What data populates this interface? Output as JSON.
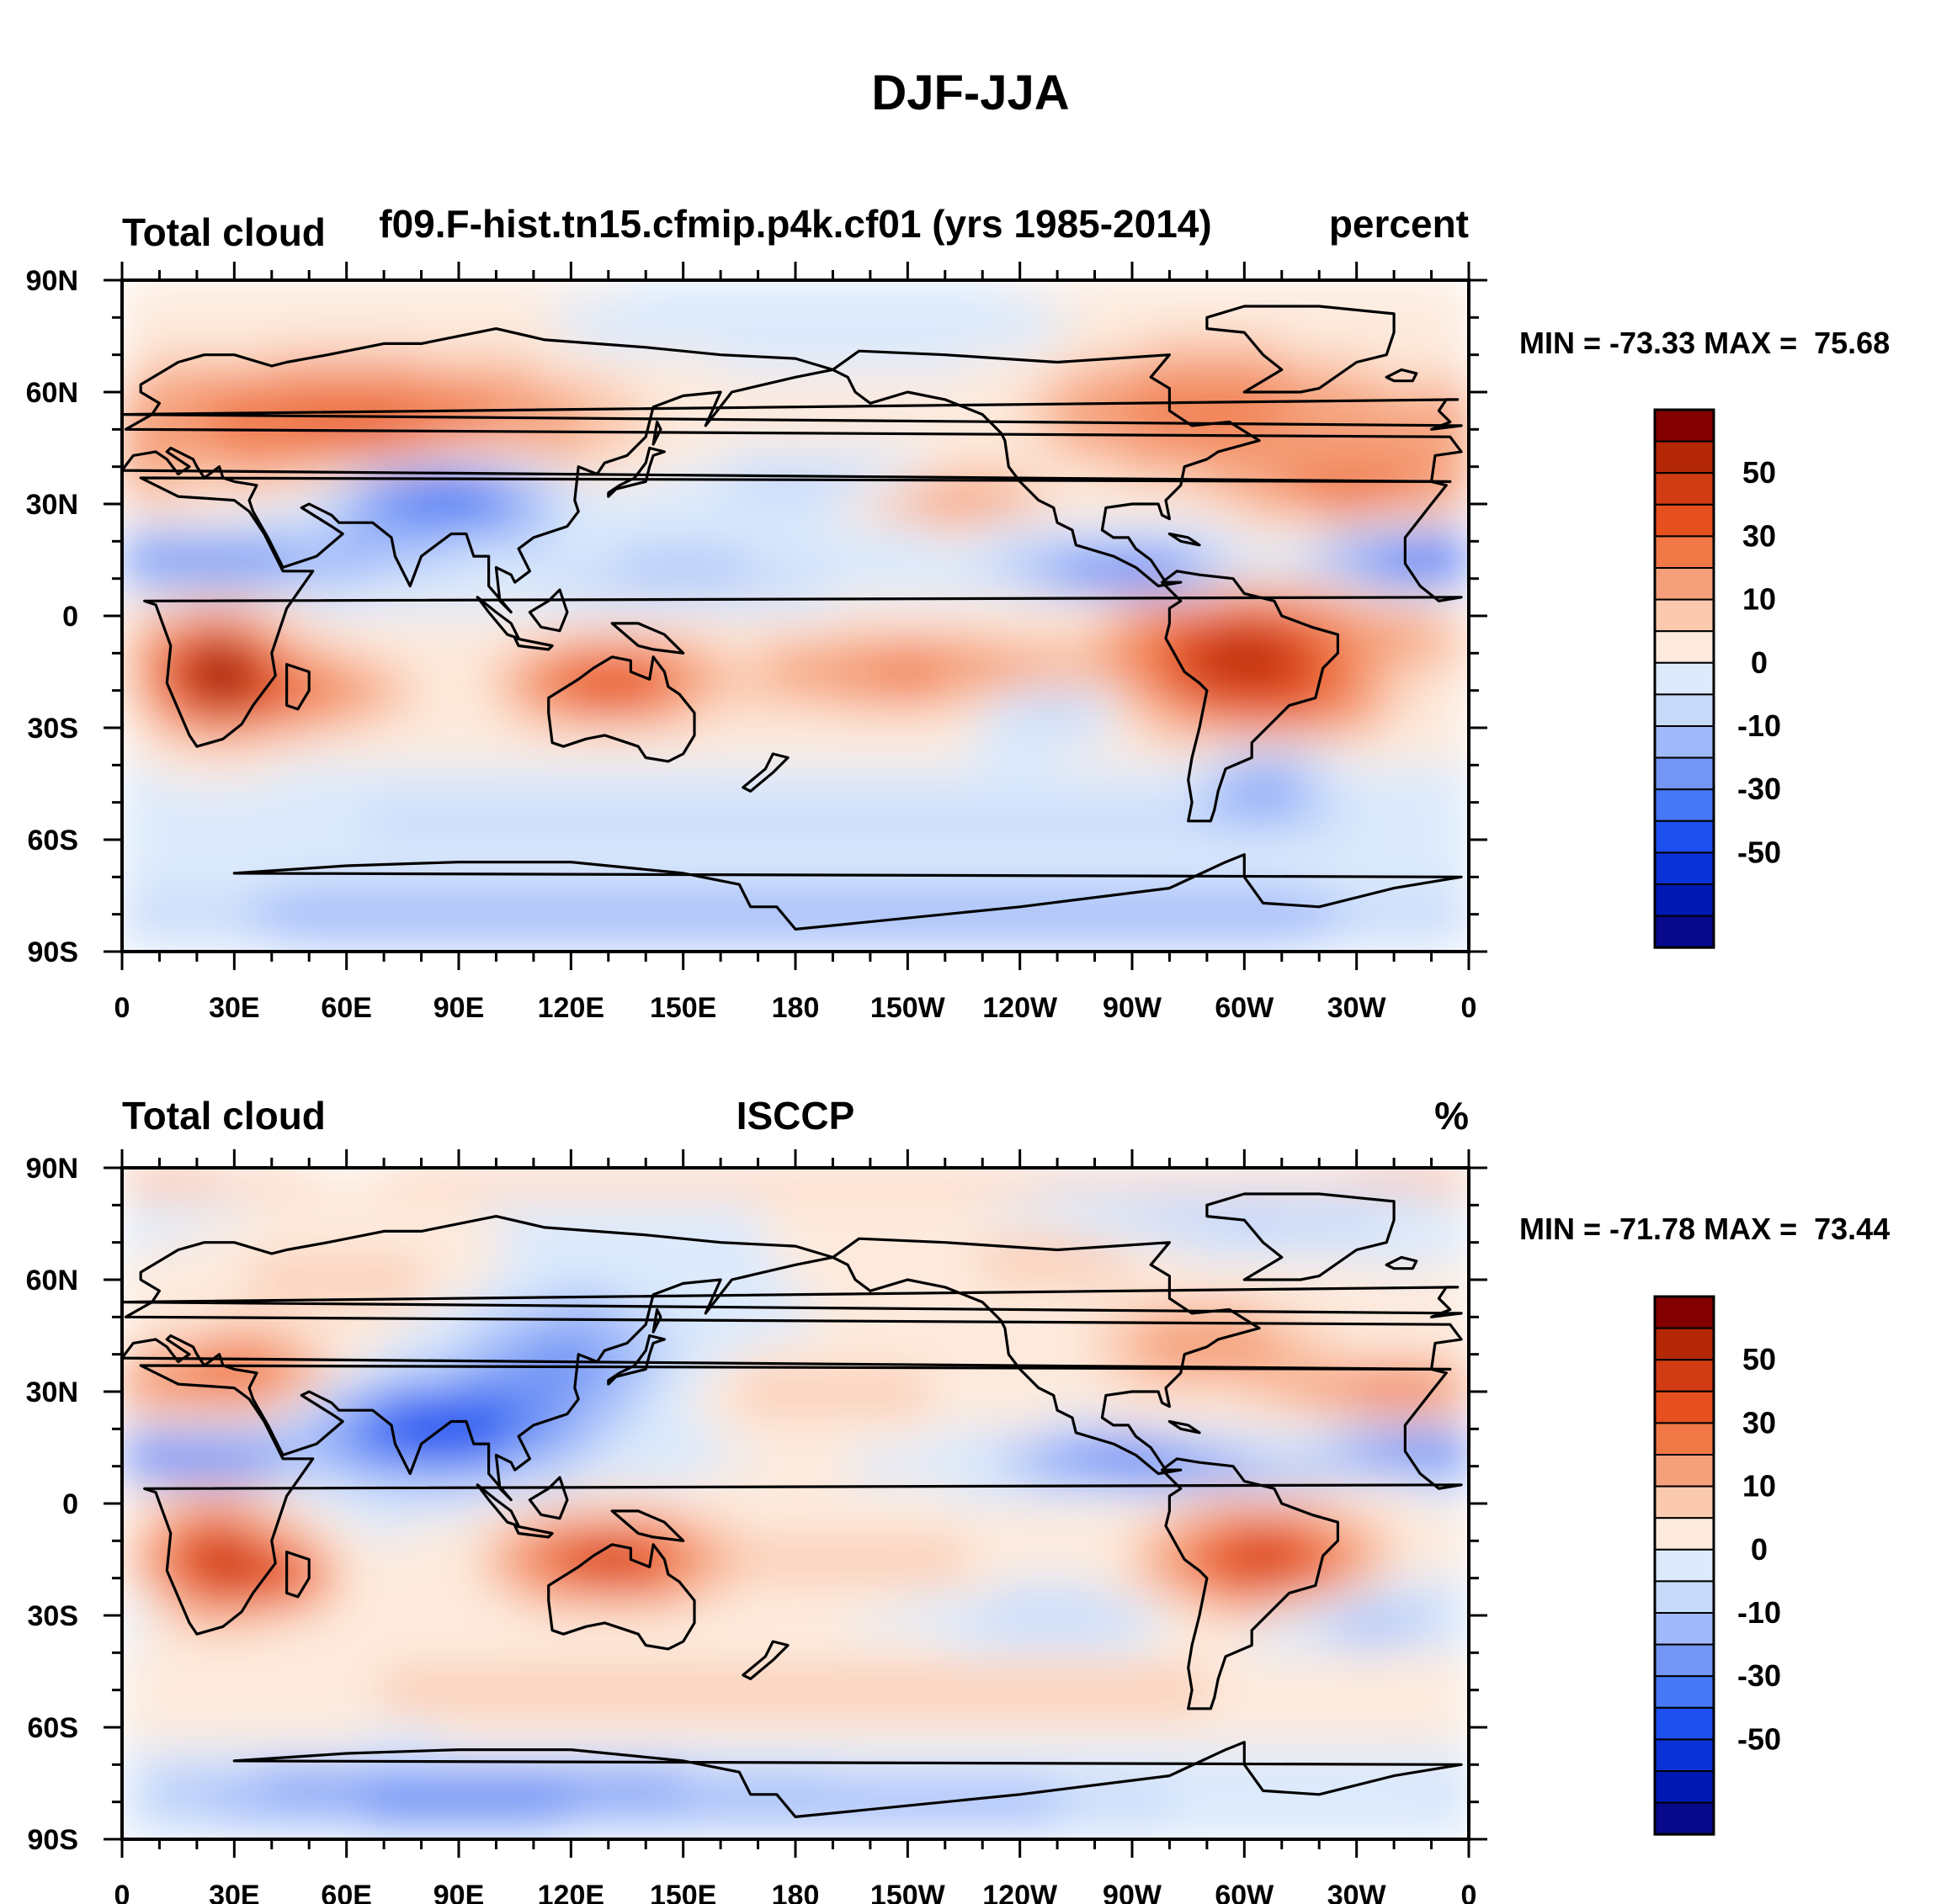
{
  "figure_title": "DJF-JJA",
  "colors": {
    "levels_fill": [
      "#08088a",
      "#0018b4",
      "#0a32d6",
      "#1e50f0",
      "#4678f5",
      "#7396f5",
      "#a0b9fa",
      "#c8dafa",
      "#dceafc",
      "#fdeadd",
      "#fbc9ae",
      "#f5a07a",
      "#f07846",
      "#e6501e",
      "#d23c14",
      "#b42807",
      "#820000"
    ],
    "coast": "#000000"
  },
  "colorbar": {
    "labels": [
      "50",
      "30",
      "10",
      "0",
      "-10",
      "-30",
      "-50"
    ]
  },
  "chart_data": [
    {
      "type": "heatmap",
      "left_title": "Total cloud",
      "center_title": "f09.F-hist.tn15.cfmip.p4k.cf01 (yrs 1985-2014)",
      "right_title": "percent",
      "stats": "MIN = -73.33 MAX =  75.68",
      "min": -73.33,
      "max": 75.68,
      "ylabels": [
        "90N",
        "60N",
        "30N",
        "0",
        "30S",
        "60S",
        "90S"
      ],
      "xlabels": [
        "0",
        "30E",
        "60E",
        "90E",
        "120E",
        "150E",
        "180",
        "150W",
        "120W",
        "90W",
        "60W",
        "30W",
        "0"
      ],
      "xlim": [
        0,
        360
      ],
      "ylim": [
        -90,
        90
      ],
      "contour_levels": [
        -70,
        -60,
        -50,
        -40,
        -30,
        -20,
        -10,
        -5,
        0,
        5,
        10,
        20,
        30,
        40,
        50,
        60,
        70
      ]
    },
    {
      "type": "heatmap",
      "left_title": "Total cloud",
      "center_title": "ISCCP",
      "right_title": "%",
      "stats": "MIN = -71.78 MAX =  73.44",
      "min": -71.78,
      "max": 73.44,
      "ylabels": [
        "90N",
        "60N",
        "30N",
        "0",
        "30S",
        "60S",
        "90S"
      ],
      "xlabels": [
        "0",
        "30E",
        "60E",
        "90E",
        "120E",
        "150E",
        "180",
        "150W",
        "120W",
        "90W",
        "60W",
        "30W",
        "0"
      ],
      "xlim": [
        0,
        360
      ],
      "ylim": [
        -90,
        90
      ],
      "contour_levels": [
        -70,
        -60,
        -50,
        -40,
        -30,
        -20,
        -10,
        -5,
        0,
        5,
        10,
        20,
        30,
        40,
        50,
        60,
        70
      ]
    }
  ]
}
